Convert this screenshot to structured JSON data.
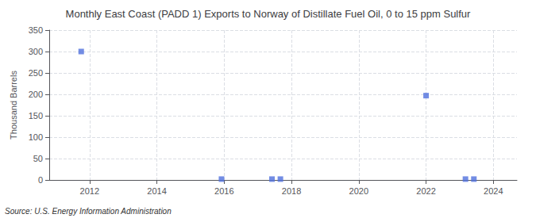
{
  "chart_data": {
    "type": "scatter",
    "title": "Monthly East Coast (PADD 1) Exports to Norway of Distillate Fuel Oil, 0 to 15 ppm Sulfur",
    "ylabel": "Thousand Barrels",
    "annotations": [
      "Source: U.S. Energy Information Administration"
    ],
    "x": [
      2011.75,
      2015.92,
      2017.42,
      2017.67,
      2022.0,
      2023.17,
      2023.42
    ],
    "values": [
      300,
      2,
      2,
      2,
      197,
      2,
      2
    ],
    "marker": "square",
    "xlim": [
      2010.8,
      2024.7
    ],
    "xticks": [
      2012,
      2014,
      2016,
      2018,
      2020,
      2022,
      2024
    ],
    "ylim": [
      0,
      350
    ],
    "yticks": [
      0,
      50,
      100,
      150,
      200,
      250,
      300,
      350
    ],
    "grid": true
  }
}
